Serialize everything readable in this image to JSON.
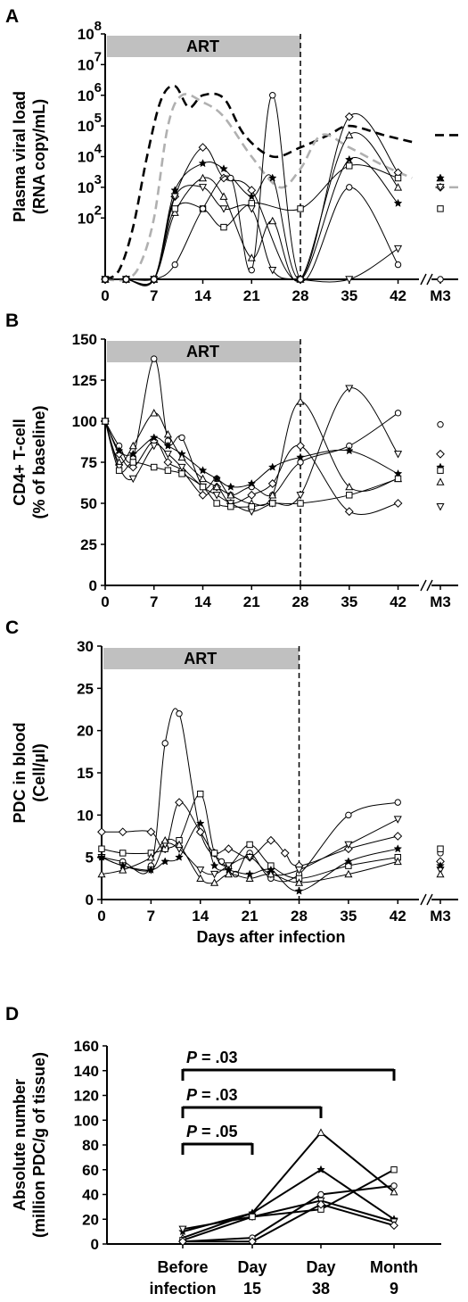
{
  "chart_data": [
    {
      "panel_label": "A",
      "type": "line",
      "band_label": "ART",
      "ylabel": [
        "Plasma viral load",
        "(RNA copy/mL)"
      ],
      "y_scale": "log",
      "ylim": [
        1,
        100000000
      ],
      "y_ticks": [
        {
          "base": "10",
          "exp": "2",
          "value": 100
        },
        {
          "base": "10",
          "exp": "3",
          "value": 1000
        },
        {
          "base": "10",
          "exp": "4",
          "value": 10000
        },
        {
          "base": "10",
          "exp": "5",
          "value": 100000
        },
        {
          "base": "10",
          "exp": "6",
          "value": 1000000
        },
        {
          "base": "10",
          "exp": "7",
          "value": 10000000
        },
        {
          "base": "10",
          "exp": "8",
          "value": 100000000
        }
      ],
      "x_ticks": [
        "0",
        "7",
        "14",
        "21",
        "28",
        "35",
        "42",
        "M3"
      ],
      "xlim": [
        0,
        45
      ],
      "art_end_day": 28,
      "series": [
        {
          "marker": "diamond",
          "x": [
            0,
            3,
            7,
            10,
            14,
            17,
            21,
            28,
            35,
            42
          ],
          "y": [
            1,
            1,
            1,
            500,
            20000,
            2000,
            800,
            1,
            200000,
            3000
          ],
          "m3": 1000
        },
        {
          "marker": "triangle",
          "x": [
            0,
            3,
            7,
            10,
            14,
            17,
            21,
            24,
            28,
            35,
            42
          ],
          "y": [
            1,
            1,
            1,
            150,
            2000,
            500,
            5,
            80,
            1,
            50000,
            1000
          ],
          "m3": 2000
        },
        {
          "marker": "star",
          "x": [
            0,
            3,
            7,
            10,
            14,
            17,
            21,
            24,
            28,
            35,
            42
          ],
          "y": [
            1,
            1,
            1,
            800,
            6000,
            4000,
            500,
            2000,
            1,
            8000,
            300
          ],
          "m3": 2000
        },
        {
          "marker": "square",
          "x": [
            0,
            3,
            7,
            10,
            14,
            17,
            21,
            28,
            35,
            42
          ],
          "y": [
            1,
            1,
            1,
            200,
            200,
            50,
            300,
            200,
            5000,
            2000
          ],
          "m3": 200
        },
        {
          "marker": "inverted-triangle",
          "x": [
            0,
            3,
            7,
            10,
            14,
            17,
            21,
            24,
            28,
            35,
            42
          ],
          "y": [
            1,
            1,
            1,
            500,
            1000,
            200,
            200,
            2,
            1,
            1,
            10
          ],
          "m3": 1000
        },
        {
          "marker": "circle",
          "x": [
            0,
            3,
            7,
            10,
            14,
            18,
            21,
            24,
            28,
            35,
            42
          ],
          "y": [
            1,
            1,
            1,
            3,
            200,
            2000,
            2,
            1000000,
            1,
            1000,
            3
          ],
          "m3": 1
        }
      ],
      "dashed_series": [
        {
          "color": "#000000",
          "x": [
            0,
            2,
            4,
            6,
            8,
            10,
            12,
            14,
            17,
            20,
            24,
            28,
            32,
            35,
            40,
            44
          ],
          "y": [
            1,
            2,
            50,
            10000,
            700000,
            2000000,
            400000,
            1000000,
            800000,
            50000,
            10000,
            20000,
            50000,
            100000,
            50000,
            30000
          ],
          "m3": 50000
        },
        {
          "color": "#b0b0b0",
          "x": [
            0,
            3,
            5,
            7,
            9,
            11,
            14,
            17,
            21,
            25,
            28,
            31,
            35,
            40,
            44
          ],
          "y": [
            1,
            1,
            3,
            100,
            100000,
            1000000,
            600000,
            200000,
            10000,
            1000,
            4000,
            50000,
            20000,
            5000,
            2000
          ],
          "m3": 1000
        }
      ]
    },
    {
      "panel_label": "B",
      "type": "line",
      "band_label": "ART",
      "ylabel": [
        "CD4+ T-cell",
        "(% of baseline)"
      ],
      "ylim": [
        0,
        150
      ],
      "y_ticks": [
        "0",
        "25",
        "50",
        "75",
        "100",
        "125",
        "150"
      ],
      "x_ticks": [
        "0",
        "7",
        "14",
        "21",
        "28",
        "35",
        "42",
        "M3"
      ],
      "xlim": [
        0,
        45
      ],
      "art_end_day": 28,
      "series": [
        {
          "marker": "circle",
          "x": [
            0,
            2,
            4,
            7,
            9,
            11,
            14,
            16,
            18,
            21,
            24,
            28,
            35,
            42
          ],
          "y": [
            100,
            85,
            78,
            138,
            88,
            90,
            60,
            65,
            55,
            60,
            55,
            75,
            85,
            105
          ],
          "m3": 98
        },
        {
          "marker": "diamond",
          "x": [
            0,
            2,
            4,
            7,
            9,
            11,
            14,
            16,
            18,
            21,
            24,
            28,
            35,
            42
          ],
          "y": [
            100,
            80,
            72,
            88,
            75,
            70,
            55,
            60,
            50,
            55,
            62,
            85,
            45,
            50
          ],
          "m3": 80
        },
        {
          "marker": "star",
          "x": [
            0,
            2,
            4,
            7,
            9,
            11,
            14,
            16,
            18,
            21,
            24,
            28,
            35,
            42
          ],
          "y": [
            100,
            82,
            80,
            90,
            85,
            80,
            70,
            65,
            60,
            62,
            72,
            78,
            82,
            68
          ],
          "m3": 72
        },
        {
          "marker": "triangle",
          "x": [
            0,
            2,
            4,
            7,
            9,
            11,
            14,
            16,
            18,
            21,
            24,
            28,
            35,
            42
          ],
          "y": [
            100,
            75,
            85,
            105,
            92,
            78,
            65,
            60,
            55,
            50,
            55,
            112,
            60,
            65
          ],
          "m3": 63
        },
        {
          "marker": "inverted-triangle",
          "x": [
            0,
            2,
            4,
            7,
            9,
            11,
            14,
            16,
            18,
            21,
            24,
            28,
            35,
            42
          ],
          "y": [
            100,
            72,
            65,
            85,
            80,
            72,
            60,
            55,
            50,
            45,
            50,
            55,
            120,
            80
          ],
          "m3": 48
        },
        {
          "marker": "square",
          "x": [
            0,
            2,
            4,
            7,
            9,
            11,
            14,
            16,
            18,
            21,
            24,
            28,
            35,
            42
          ],
          "y": [
            100,
            70,
            75,
            72,
            70,
            68,
            60,
            50,
            48,
            48,
            50,
            50,
            55,
            65
          ],
          "m3": 70
        }
      ]
    },
    {
      "panel_label": "C",
      "type": "line",
      "band_label": "ART",
      "ylabel": [
        "PDC in blood",
        "(Cell/µl)"
      ],
      "xlabel": "Days after infection",
      "ylim": [
        0,
        30
      ],
      "y_ticks": [
        "0",
        "5",
        "10",
        "15",
        "20",
        "25",
        "30"
      ],
      "x_ticks": [
        "0",
        "7",
        "14",
        "21",
        "28",
        "35",
        "42",
        "M3"
      ],
      "xlim": [
        0,
        45
      ],
      "art_end_day": 28,
      "series": [
        {
          "marker": "circle",
          "x": [
            0,
            3,
            7,
            9,
            11,
            14,
            17,
            19,
            21,
            24,
            28,
            35,
            42
          ],
          "y": [
            5,
            4.5,
            4,
            18.5,
            22,
            8,
            4.5,
            3,
            5.5,
            2.5,
            3,
            10,
            11.5
          ],
          "m3": 5.5
        },
        {
          "marker": "diamond",
          "x": [
            0,
            3,
            7,
            9,
            11,
            14,
            16,
            18,
            21,
            24,
            26,
            28,
            35,
            42
          ],
          "y": [
            8,
            8,
            8,
            6,
            11.5,
            8,
            5.5,
            6,
            5,
            7,
            5.5,
            4,
            6,
            7.5
          ],
          "m3": 4.5
        },
        {
          "marker": "square",
          "x": [
            0,
            3,
            7,
            9,
            11,
            14,
            16,
            18,
            21,
            24,
            28,
            35,
            42
          ],
          "y": [
            6,
            5.5,
            5.5,
            6,
            7,
            12.5,
            5.5,
            4,
            6.5,
            4,
            2.5,
            4,
            5
          ],
          "m3": 6
        },
        {
          "marker": "inverted-triangle",
          "x": [
            0,
            3,
            7,
            9,
            11,
            14,
            16,
            18,
            21,
            24,
            28,
            35,
            42
          ],
          "y": [
            5,
            4,
            3.5,
            6.5,
            6,
            3.5,
            3,
            4,
            5,
            3,
            3.5,
            6.5,
            9.5
          ],
          "m3": 3.5
        },
        {
          "marker": "star",
          "x": [
            0,
            3,
            7,
            9,
            11,
            14,
            16,
            18,
            21,
            24,
            28,
            35,
            42
          ],
          "y": [
            5,
            4,
            3.5,
            4.5,
            5,
            9,
            4,
            3.5,
            3,
            3.5,
            1,
            4.5,
            6
          ],
          "m3": 4
        },
        {
          "marker": "triangle",
          "x": [
            0,
            3,
            7,
            9,
            11,
            14,
            16,
            18,
            21,
            24,
            28,
            35,
            42
          ],
          "y": [
            3,
            3.5,
            5,
            7,
            6.5,
            2.5,
            2,
            3,
            2.5,
            3,
            2,
            3,
            4.5
          ],
          "m3": 3
        }
      ]
    },
    {
      "panel_label": "D",
      "type": "line",
      "ylabel": [
        "Absolute number",
        "(million PDC/g of tissue)"
      ],
      "ylim": [
        0,
        160
      ],
      "y_ticks": [
        "0",
        "20",
        "40",
        "60",
        "80",
        "100",
        "120",
        "140",
        "160"
      ],
      "x_labels": [
        [
          "Before",
          "infection"
        ],
        [
          "Day",
          "15"
        ],
        [
          "Day",
          "38"
        ],
        [
          "Month",
          "9"
        ]
      ],
      "significance": [
        {
          "italic": "P",
          "text": " = .03",
          "from": 0,
          "to": 3
        },
        {
          "italic": "P",
          "text": " = .03",
          "from": 0,
          "to": 2
        },
        {
          "italic": "P",
          "text": " = .05",
          "from": 0,
          "to": 1
        }
      ],
      "series": [
        {
          "marker": "triangle",
          "values": [
            5,
            25,
            90,
            42
          ]
        },
        {
          "marker": "star",
          "values": [
            10,
            25,
            60,
            20
          ]
        },
        {
          "marker": "inverted-triangle",
          "values": [
            12,
            22,
            35,
            18
          ]
        },
        {
          "marker": "circle",
          "values": [
            2,
            5,
            40,
            47
          ]
        },
        {
          "marker": "square",
          "values": [
            3,
            22,
            28,
            60
          ]
        },
        {
          "marker": "diamond",
          "values": [
            2,
            2,
            32,
            15
          ]
        }
      ]
    }
  ]
}
